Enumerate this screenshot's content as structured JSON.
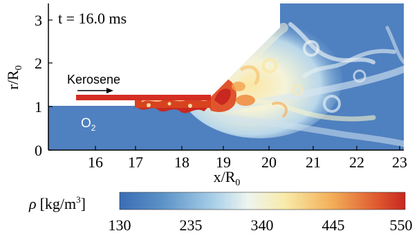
{
  "plot": {
    "time_label": "t = 16.0 ms",
    "fuel_label": "Kerosene",
    "oxidizer_label": "O",
    "oxidizer_subscript": "2",
    "x_axis_label_main": "x/R",
    "x_axis_label_sub": "0",
    "y_axis_label_main": "r/R",
    "y_axis_label_sub": "0",
    "x_ticks": [
      "16",
      "17",
      "18",
      "19",
      "20",
      "21",
      "22",
      "23"
    ],
    "y_ticks": [
      "0",
      "1",
      "2",
      "3"
    ]
  },
  "colorbar": {
    "symbol": "ρ",
    "unit_prefix": "[kg/m",
    "unit_exponent": "3",
    "unit_suffix": "]",
    "ticks": [
      "130",
      "235",
      "340",
      "445",
      "550"
    ],
    "colors": [
      "#3a6db5",
      "#5b92c7",
      "#a9cfe8",
      "#eef5f0",
      "#f8eaa8",
      "#f3b05a",
      "#df5a30",
      "#c8281f"
    ]
  },
  "colors": {
    "background_field": "#4f80c0",
    "jet_red": "#d42d22",
    "text": "#000000"
  }
}
